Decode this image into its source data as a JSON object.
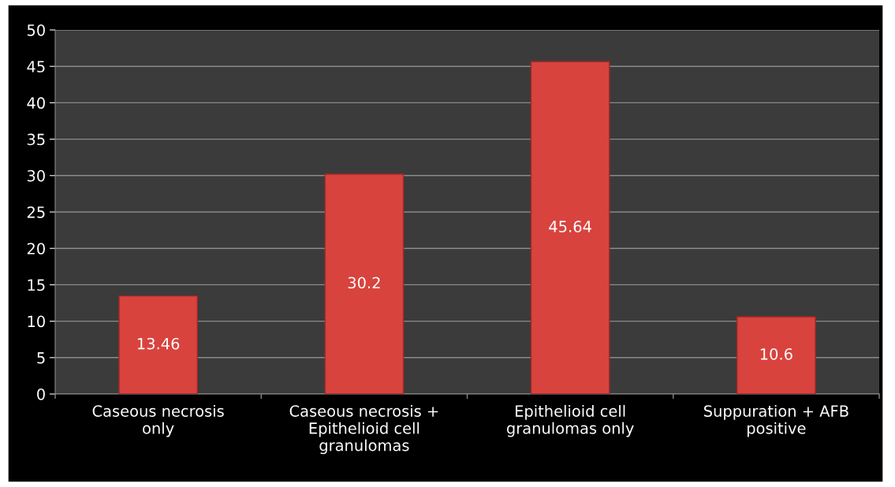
{
  "chart_data": {
    "type": "bar",
    "categories": [
      "Caseous necrosis\nonly",
      "Caseous necrosis +\nEpithelioid cell\ngranulomas",
      "Epithelioid cell\ngranulomas only",
      "Suppuration + AFB\npositive"
    ],
    "values": [
      13.46,
      30.2,
      45.64,
      10.6
    ],
    "color": "#d8433e",
    "ylim": [
      0,
      50
    ],
    "yticks": [
      0,
      5,
      10,
      15,
      20,
      25,
      30,
      35,
      40,
      45,
      50
    ],
    "grid": "y",
    "data_labels": true
  }
}
